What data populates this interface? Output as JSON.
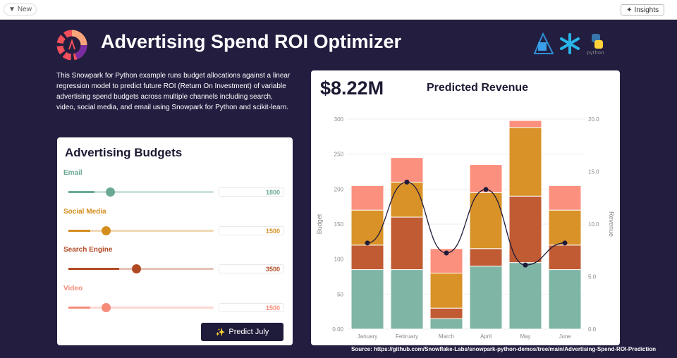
{
  "topbar": {
    "new_label": "New",
    "insights_label": "Insights"
  },
  "header": {
    "title": "Advertising Spend ROI Optimizer",
    "logos": [
      "streamlit-logo",
      "snowflake-logo",
      "python-logo"
    ]
  },
  "description": "This Snowpark for Python example runs budget allocations against a linear regression model to predict future ROI (Return On Investment) of variable advertising spend budgets across multiple channels including search, video, social media, and email using Snowpark for Python and scikit-learn.",
  "budgets": {
    "title": "Advertising Budgets",
    "predict_label": "Predict July",
    "channels": [
      {
        "label": "Email",
        "value": "1800",
        "fraction": 0.18,
        "color": "#6aa995"
      },
      {
        "label": "Social Media",
        "value": "1500",
        "fraction": 0.15,
        "color": "#d48e20"
      },
      {
        "label": "Search Engine",
        "value": "3500",
        "fraction": 0.35,
        "color": "#b04a25"
      },
      {
        "label": "Video",
        "value": "1500",
        "fraction": 0.15,
        "color": "#f68b79"
      }
    ]
  },
  "revenue": {
    "value": "$8.22M",
    "label": "Predicted Revenue"
  },
  "chart_data": {
    "type": "bar",
    "stacked": true,
    "categories": [
      "January",
      "February",
      "March",
      "April",
      "May",
      "June"
    ],
    "ylabel": "Budget",
    "y2label": "Revenue",
    "ylim": [
      0,
      300
    ],
    "y2lim": [
      0,
      20
    ],
    "yticks": [
      "0.00",
      "50",
      "100",
      "150",
      "200",
      "250",
      "300"
    ],
    "y2ticks": [
      "0.0",
      "5.0",
      "10.0",
      "15.0",
      "20.0"
    ],
    "grid": true,
    "series": [
      {
        "key": "email",
        "color": "#7fb5a4",
        "values": [
          85,
          85,
          15,
          90,
          95,
          85
        ]
      },
      {
        "key": "search",
        "color": "#c05b33",
        "values": [
          35,
          75,
          15,
          25,
          95,
          35
        ]
      },
      {
        "key": "social",
        "color": "#d99228",
        "values": [
          50,
          50,
          50,
          80,
          98,
          50
        ]
      },
      {
        "key": "video",
        "color": "#fc907f",
        "values": [
          35,
          35,
          35,
          40,
          10,
          35
        ]
      }
    ],
    "line": {
      "color": "#1f1b3a",
      "values": [
        8.2,
        14.0,
        7.25,
        13.3,
        6.1,
        8.2
      ]
    }
  },
  "source": "Source: https://github.com/Snowflake-Labs/snowpark-python-demos/tree/main/Advertising-Spend-ROI-Prediction"
}
